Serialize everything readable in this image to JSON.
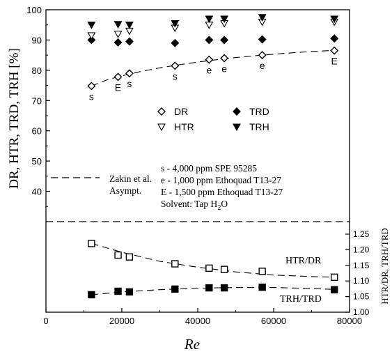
{
  "chart_data": [
    {
      "type": "scatter",
      "panel": "upper",
      "ylabel": "DR, HTR, TRD, TRH [%]",
      "ylim": [
        30,
        100
      ],
      "yticks": [
        "40",
        "50",
        "60",
        "70",
        "80",
        "90",
        "100"
      ],
      "grid": false,
      "legend": {
        "position": "center",
        "entries": [
          {
            "name": "DR",
            "marker": "open-diamond"
          },
          {
            "name": "TRD",
            "marker": "filled-diamond"
          },
          {
            "name": "HTR",
            "marker": "open-triangle-down"
          },
          {
            "name": "TRH",
            "marker": "filled-triangle-down"
          }
        ]
      },
      "series": [
        {
          "name": "DR",
          "marker": "open-diamond",
          "points": [
            [
              12000,
              74.8
            ],
            [
              19000,
              77.8
            ],
            [
              22000,
              79.0
            ],
            [
              34000,
              81.5
            ],
            [
              43000,
              83.5
            ],
            [
              47000,
              84.0
            ],
            [
              57000,
              85.0
            ],
            [
              76000,
              86.5
            ]
          ],
          "labels": [
            "s",
            "E",
            "s",
            "s",
            "e",
            "e",
            "e",
            "E"
          ]
        },
        {
          "name": "TRD",
          "marker": "filled-diamond",
          "points": [
            [
              12000,
              90.0
            ],
            [
              19000,
              89.2
            ],
            [
              22000,
              89.5
            ],
            [
              34000,
              89.0
            ],
            [
              43000,
              90.0
            ],
            [
              47000,
              90.0
            ],
            [
              57000,
              90.2
            ],
            [
              76000,
              90.5
            ]
          ]
        },
        {
          "name": "HTR",
          "marker": "open-triangle-down",
          "points": [
            [
              12000,
              91.5
            ],
            [
              19000,
              92.0
            ],
            [
              22000,
              93.0
            ],
            [
              34000,
              94.0
            ],
            [
              43000,
              95.0
            ],
            [
              47000,
              95.5
            ],
            [
              57000,
              96.0
            ],
            [
              76000,
              96.0
            ]
          ]
        },
        {
          "name": "TRH",
          "marker": "filled-triangle-down",
          "points": [
            [
              12000,
              95.0
            ],
            [
              19000,
              95.2
            ],
            [
              22000,
              95.0
            ],
            [
              34000,
              95.5
            ],
            [
              43000,
              97.0
            ],
            [
              47000,
              97.0
            ],
            [
              57000,
              97.5
            ],
            [
              76000,
              97.0
            ]
          ]
        }
      ],
      "curve": {
        "name": "Zakin et al. Asympt.",
        "style": "dashed",
        "points": [
          [
            12000,
            74.8
          ],
          [
            16000,
            76.8
          ],
          [
            20000,
            78.2
          ],
          [
            25000,
            79.6
          ],
          [
            30000,
            80.8
          ],
          [
            35000,
            81.8
          ],
          [
            40000,
            82.7
          ],
          [
            45000,
            83.5
          ],
          [
            50000,
            84.2
          ],
          [
            55000,
            84.8
          ],
          [
            60000,
            85.3
          ],
          [
            65000,
            85.8
          ],
          [
            70000,
            86.2
          ],
          [
            75000,
            86.5
          ]
        ]
      },
      "annotations": {
        "curve_label": [
          "Zakin et al.",
          "Asympt."
        ],
        "notes": [
          "s - 4,000 ppm SPE 95285",
          "e - 1,000 ppm Ethoquad T13-27",
          "E - 1,500 ppm Ethoquad T13-27",
          "Solvent: Tap H2O"
        ]
      }
    },
    {
      "type": "scatter",
      "panel": "lower",
      "xlabel": "Re",
      "ylabel": "HTR/DR, TRH/TRD",
      "xlim": [
        0,
        80000
      ],
      "ylim": [
        1.0,
        1.25
      ],
      "xticks": [
        "0",
        "20000",
        "40000",
        "60000",
        "80000"
      ],
      "yticks": [
        "1.00",
        "1.05",
        "1.10",
        "1.15",
        "1.20",
        "1.25"
      ],
      "grid": false,
      "series": [
        {
          "name": "HTR/DR",
          "marker": "open-square",
          "points": [
            [
              12000,
              1.22
            ],
            [
              19000,
              1.183
            ],
            [
              22000,
              1.177
            ],
            [
              34000,
              1.155
            ],
            [
              43000,
              1.141
            ],
            [
              47000,
              1.137
            ],
            [
              57000,
              1.131
            ],
            [
              76000,
              1.112
            ]
          ]
        },
        {
          "name": "TRH/TRD",
          "marker": "filled-square",
          "points": [
            [
              12000,
              1.056
            ],
            [
              19000,
              1.067
            ],
            [
              22000,
              1.065
            ],
            [
              34000,
              1.074
            ],
            [
              43000,
              1.078
            ],
            [
              47000,
              1.078
            ],
            [
              57000,
              1.08
            ],
            [
              76000,
              1.072
            ]
          ]
        }
      ],
      "curves": [
        {
          "name": "HTR/DR",
          "style": "dashed",
          "points": [
            [
              12000,
              1.22
            ],
            [
              20000,
              1.192
            ],
            [
              30000,
              1.163
            ],
            [
              40000,
              1.144
            ],
            [
              50000,
              1.129
            ],
            [
              60000,
              1.119
            ],
            [
              70000,
              1.114
            ],
            [
              76000,
              1.112
            ]
          ]
        },
        {
          "name": "TRH/TRD",
          "style": "dashed",
          "points": [
            [
              12000,
              1.056
            ],
            [
              20000,
              1.065
            ],
            [
              30000,
              1.072
            ],
            [
              40000,
              1.077
            ],
            [
              50000,
              1.079
            ],
            [
              60000,
              1.079
            ],
            [
              70000,
              1.076
            ],
            [
              76000,
              1.073
            ]
          ]
        }
      ]
    }
  ],
  "xlabel": "Re"
}
